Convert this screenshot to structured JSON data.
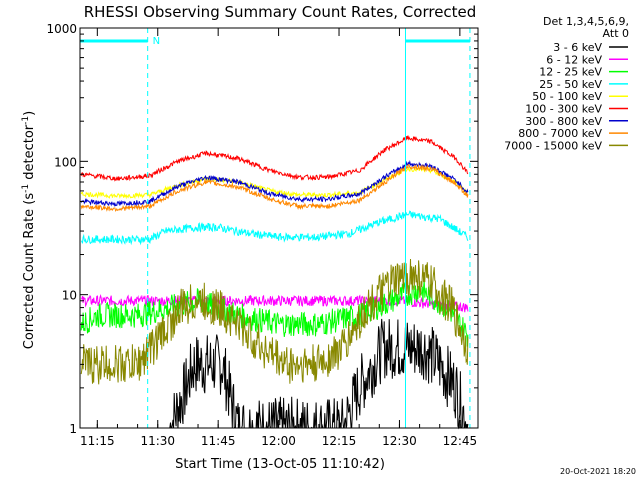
{
  "chart_data": {
    "type": "line",
    "title": "RHESSI Observing Summary Count Rates, Corrected",
    "xlabel": "Start Time (13-Oct-05 11:10:42)",
    "ylabel_main": "Corrected Count Rate (s",
    "ylabel_sup1": "-1",
    "ylabel_mid": " detector",
    "ylabel_sup2": "-1",
    "ylabel_end": ")",
    "yscale": "log",
    "xlim": [
      "11:10:42",
      "12:49:30"
    ],
    "ylim": [
      1,
      1000
    ],
    "x_ticks": [
      "11:15",
      "11:30",
      "11:45",
      "12:00",
      "12:15",
      "12:30",
      "12:45"
    ],
    "y_ticks": [
      "1",
      "10",
      "100",
      "1000"
    ],
    "legend_position": "right",
    "legend_header": [
      "Det 1,3,4,5,6,9,",
      "Att 0"
    ],
    "series": [
      {
        "name": "3 - 6 keV",
        "color": "#000000",
        "x": [
          "11:33",
          "11:37",
          "11:39",
          "11:46",
          "11:50",
          "12:16",
          "12:20",
          "12:26",
          "12:36",
          "12:40",
          "12:44",
          "12:47"
        ],
        "y": [
          1,
          2,
          3,
          3,
          1,
          1,
          2,
          4,
          4,
          3,
          2,
          1
        ]
      },
      {
        "name": "6 - 12 keV",
        "color": "#ff00ff",
        "x": [
          "11:11",
          "11:30",
          "12:00",
          "12:30",
          "12:47"
        ],
        "y": [
          9,
          9,
          9,
          9,
          8
        ]
      },
      {
        "name": "12 - 25 keV",
        "color": "#00ff00",
        "x": [
          "11:11",
          "11:15",
          "11:25",
          "11:33",
          "11:40",
          "11:50",
          "12:00",
          "12:10",
          "12:20",
          "12:28",
          "12:35",
          "12:42",
          "12:47"
        ],
        "y": [
          6,
          7,
          7,
          8,
          9,
          7,
          6,
          6,
          7,
          9,
          11,
          8,
          5
        ]
      },
      {
        "name": "25 - 50 keV",
        "color": "#00ffff",
        "x": [
          "11:11",
          "11:20",
          "11:28",
          "11:32",
          "11:40",
          "11:45",
          "11:52",
          "12:00",
          "12:10",
          "12:18",
          "12:25",
          "12:32",
          "12:40",
          "12:47"
        ],
        "y": [
          26,
          26,
          26,
          30,
          32,
          32,
          29,
          27,
          27,
          29,
          35,
          40,
          37,
          27
        ]
      },
      {
        "name": "50 - 100 keV",
        "color": "#ffff00",
        "x": [
          "11:11",
          "11:20",
          "11:28",
          "11:35",
          "11:42",
          "11:50",
          "11:58",
          "12:05",
          "12:12",
          "12:20",
          "12:26",
          "12:32",
          "12:38",
          "12:44",
          "12:47"
        ],
        "y": [
          57,
          55,
          56,
          66,
          74,
          70,
          60,
          56,
          56,
          58,
          72,
          88,
          85,
          70,
          58
        ]
      },
      {
        "name": "100 - 300 keV",
        "color": "#ff0000",
        "x": [
          "11:11",
          "11:20",
          "11:28",
          "11:35",
          "11:42",
          "11:50",
          "11:58",
          "12:05",
          "12:12",
          "12:20",
          "12:26",
          "12:32",
          "12:38",
          "12:44",
          "12:47"
        ],
        "y": [
          80,
          74,
          78,
          100,
          115,
          105,
          85,
          76,
          76,
          85,
          120,
          150,
          140,
          105,
          82
        ]
      },
      {
        "name": "300 - 800 keV",
        "color": "#0000cc",
        "x": [
          "11:11",
          "11:20",
          "11:28",
          "11:35",
          "11:42",
          "11:50",
          "11:58",
          "12:05",
          "12:12",
          "12:20",
          "12:26",
          "12:32",
          "12:38",
          "12:44",
          "12:47"
        ],
        "y": [
          50,
          48,
          50,
          65,
          76,
          70,
          57,
          52,
          52,
          57,
          75,
          96,
          92,
          72,
          58
        ]
      },
      {
        "name": "800 - 7000 keV",
        "color": "#ff8800",
        "x": [
          "11:11",
          "11:20",
          "11:28",
          "11:35",
          "11:42",
          "11:50",
          "11:58",
          "12:05",
          "12:12",
          "12:20",
          "12:26",
          "12:32",
          "12:38",
          "12:44",
          "12:47"
        ],
        "y": [
          46,
          44,
          46,
          60,
          70,
          64,
          52,
          46,
          46,
          51,
          68,
          92,
          88,
          68,
          55
        ]
      },
      {
        "name": "7000 - 15000 keV",
        "color": "#888800",
        "x": [
          "11:11",
          "11:15",
          "11:25",
          "11:31",
          "11:36",
          "11:40",
          "11:45",
          "11:50",
          "11:56",
          "12:02",
          "12:10",
          "12:16",
          "12:22",
          "12:28",
          "12:33",
          "12:38",
          "12:43",
          "12:47"
        ],
        "y": [
          3,
          3,
          3,
          5,
          8,
          9,
          8,
          6,
          4,
          3,
          3,
          4,
          8,
          12,
          14,
          12,
          8,
          4
        ]
      }
    ],
    "attenuator_bar_label": "N",
    "attenuator_bars": [
      {
        "start": "11:10:42",
        "end": "11:27:30"
      },
      {
        "start": "12:31:30",
        "end": "12:47:30"
      }
    ],
    "vertical_markers": [
      "11:10:42",
      "11:27:30",
      "12:31:30",
      "12:47:30"
    ],
    "timestamp": "20-Oct-2021 18:20"
  }
}
